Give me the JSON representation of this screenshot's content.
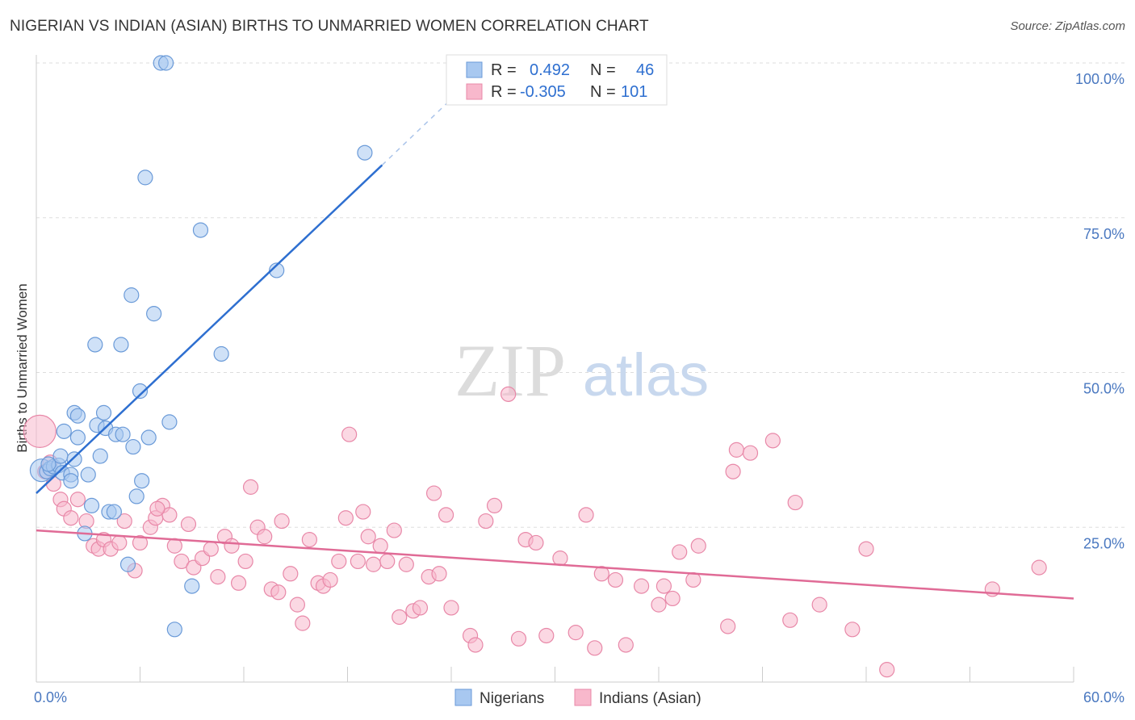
{
  "chart_data": {
    "type": "scatter",
    "title": "NIGERIAN VS INDIAN (ASIAN) BIRTHS TO UNMARRIED WOMEN CORRELATION CHART",
    "source": "Source: ZipAtlas.com",
    "xlabel": "",
    "ylabel": "Births to Unmarried Women",
    "xlim": [
      0,
      60
    ],
    "ylim": [
      0,
      100
    ],
    "x_tick_labels": [
      "0.0%",
      "60.0%"
    ],
    "y_tick_labels": [
      "100.0%",
      "75.0%",
      "50.0%",
      "25.0%"
    ],
    "y_ticks": [
      100,
      75,
      50,
      25
    ],
    "grid": true,
    "watermark": {
      "zip": "ZIP",
      "atlas": "atlas"
    },
    "legend": {
      "placement": "top-center",
      "rows": [
        {
          "r_label": "R =",
          "r_value": "0.492",
          "n_label": "N =",
          "n_value": "46"
        },
        {
          "r_label": "R =",
          "r_value": "-0.305",
          "n_label": "N =",
          "n_value": "101"
        }
      ]
    },
    "series": [
      {
        "name": "Nigerians",
        "color": "#a8c8f0",
        "stroke": "#6a9ad8",
        "line_color": "#2e6fd0",
        "trend": {
          "x1": 0,
          "y1": 30.5,
          "x2": 20,
          "y2": 83.5,
          "dash_x2": 24.5,
          "dash_y2": 95.5
        },
        "points": [
          [
            0.3,
            34.2
          ],
          [
            0.6,
            34.0
          ],
          [
            0.8,
            34.5
          ],
          [
            1.0,
            34.8
          ],
          [
            1.3,
            35.0
          ],
          [
            1.5,
            33.8
          ],
          [
            1.4,
            36.5
          ],
          [
            1.6,
            40.5
          ],
          [
            2.0,
            33.5
          ],
          [
            2.0,
            32.5
          ],
          [
            2.2,
            36.0
          ],
          [
            2.2,
            43.5
          ],
          [
            2.4,
            39.5
          ],
          [
            2.4,
            43.0
          ],
          [
            3.0,
            33.5
          ],
          [
            3.2,
            28.5
          ],
          [
            2.8,
            24.0
          ],
          [
            3.4,
            54.5
          ],
          [
            3.5,
            41.5
          ],
          [
            3.7,
            36.5
          ],
          [
            3.9,
            43.5
          ],
          [
            4.0,
            41.0
          ],
          [
            4.2,
            27.5
          ],
          [
            4.5,
            27.5
          ],
          [
            4.6,
            40.0
          ],
          [
            4.9,
            54.5
          ],
          [
            5.0,
            40.0
          ],
          [
            5.3,
            19.0
          ],
          [
            5.5,
            62.5
          ],
          [
            5.6,
            38.0
          ],
          [
            5.8,
            30.0
          ],
          [
            6.0,
            47.0
          ],
          [
            6.1,
            32.5
          ],
          [
            6.3,
            81.5
          ],
          [
            6.5,
            39.5
          ],
          [
            6.8,
            59.5
          ],
          [
            7.2,
            100
          ],
          [
            7.5,
            100
          ],
          [
            7.7,
            42.0
          ],
          [
            8.0,
            8.5
          ],
          [
            9.0,
            15.5
          ],
          [
            9.5,
            73.0
          ],
          [
            10.7,
            53.0
          ],
          [
            13.9,
            66.5
          ],
          [
            19.0,
            85.5
          ],
          [
            0.7,
            35.2
          ]
        ]
      },
      {
        "name": "Indians (Asian)",
        "color": "#f8b8cc",
        "stroke": "#e888a8",
        "line_color": "#e06b96",
        "trend": {
          "x1": 0,
          "y1": 24.5,
          "x2": 60,
          "y2": 13.5
        },
        "points": [
          [
            0.2,
            40.5
          ],
          [
            0.5,
            34.0
          ],
          [
            0.8,
            35.5
          ],
          [
            1.0,
            32.0
          ],
          [
            1.4,
            29.5
          ],
          [
            1.6,
            28.0
          ],
          [
            2.0,
            26.5
          ],
          [
            2.4,
            29.5
          ],
          [
            2.9,
            26.0
          ],
          [
            3.3,
            22.0
          ],
          [
            3.6,
            21.5
          ],
          [
            3.9,
            23.0
          ],
          [
            4.3,
            21.5
          ],
          [
            4.8,
            22.5
          ],
          [
            5.1,
            26.0
          ],
          [
            5.7,
            18.0
          ],
          [
            6.0,
            22.5
          ],
          [
            6.6,
            25.0
          ],
          [
            6.9,
            26.5
          ],
          [
            7.3,
            28.5
          ],
          [
            7.7,
            27.0
          ],
          [
            8.0,
            22.0
          ],
          [
            8.4,
            19.5
          ],
          [
            8.8,
            25.5
          ],
          [
            9.1,
            18.5
          ],
          [
            9.6,
            20.0
          ],
          [
            10.1,
            21.5
          ],
          [
            10.5,
            17.0
          ],
          [
            10.9,
            23.5
          ],
          [
            11.3,
            22.0
          ],
          [
            11.7,
            16.0
          ],
          [
            12.1,
            19.5
          ],
          [
            12.4,
            31.5
          ],
          [
            12.8,
            25.0
          ],
          [
            13.2,
            23.5
          ],
          [
            13.6,
            15.0
          ],
          [
            14.0,
            14.5
          ],
          [
            14.2,
            26.0
          ],
          [
            14.7,
            17.5
          ],
          [
            15.1,
            12.5
          ],
          [
            15.4,
            9.5
          ],
          [
            15.8,
            23.0
          ],
          [
            16.3,
            16.0
          ],
          [
            16.6,
            15.5
          ],
          [
            17.0,
            16.5
          ],
          [
            17.5,
            19.5
          ],
          [
            17.9,
            26.5
          ],
          [
            18.1,
            40.0
          ],
          [
            18.6,
            19.5
          ],
          [
            18.9,
            27.5
          ],
          [
            19.2,
            23.5
          ],
          [
            19.5,
            19.0
          ],
          [
            19.9,
            22.0
          ],
          [
            20.3,
            19.5
          ],
          [
            20.7,
            24.5
          ],
          [
            21.0,
            10.5
          ],
          [
            21.4,
            19.0
          ],
          [
            21.8,
            11.5
          ],
          [
            22.2,
            12.0
          ],
          [
            22.7,
            17.0
          ],
          [
            23.0,
            30.5
          ],
          [
            23.3,
            17.5
          ],
          [
            23.7,
            27.0
          ],
          [
            24.0,
            12.0
          ],
          [
            25.1,
            7.5
          ],
          [
            25.4,
            6.0
          ],
          [
            26.0,
            26.0
          ],
          [
            26.5,
            28.5
          ],
          [
            27.3,
            46.5
          ],
          [
            27.9,
            7.0
          ],
          [
            28.3,
            23.0
          ],
          [
            28.9,
            22.5
          ],
          [
            29.5,
            7.5
          ],
          [
            30.3,
            20.0
          ],
          [
            31.2,
            8.0
          ],
          [
            31.8,
            27.0
          ],
          [
            32.3,
            5.5
          ],
          [
            32.7,
            17.5
          ],
          [
            33.5,
            16.5
          ],
          [
            34.1,
            6.0
          ],
          [
            35.0,
            15.5
          ],
          [
            36.0,
            12.5
          ],
          [
            36.3,
            15.5
          ],
          [
            36.8,
            13.5
          ],
          [
            37.2,
            21.0
          ],
          [
            38.0,
            16.5
          ],
          [
            38.3,
            22.0
          ],
          [
            40.0,
            9.0
          ],
          [
            40.3,
            34.0
          ],
          [
            40.5,
            37.5
          ],
          [
            41.3,
            37.0
          ],
          [
            42.6,
            39.0
          ],
          [
            43.6,
            10.0
          ],
          [
            43.9,
            29.0
          ],
          [
            45.3,
            12.5
          ],
          [
            47.2,
            8.5
          ],
          [
            48.0,
            21.5
          ],
          [
            49.2,
            2.0
          ],
          [
            55.3,
            15.0
          ],
          [
            58.0,
            18.5
          ],
          [
            7.0,
            28.0
          ]
        ]
      }
    ]
  }
}
